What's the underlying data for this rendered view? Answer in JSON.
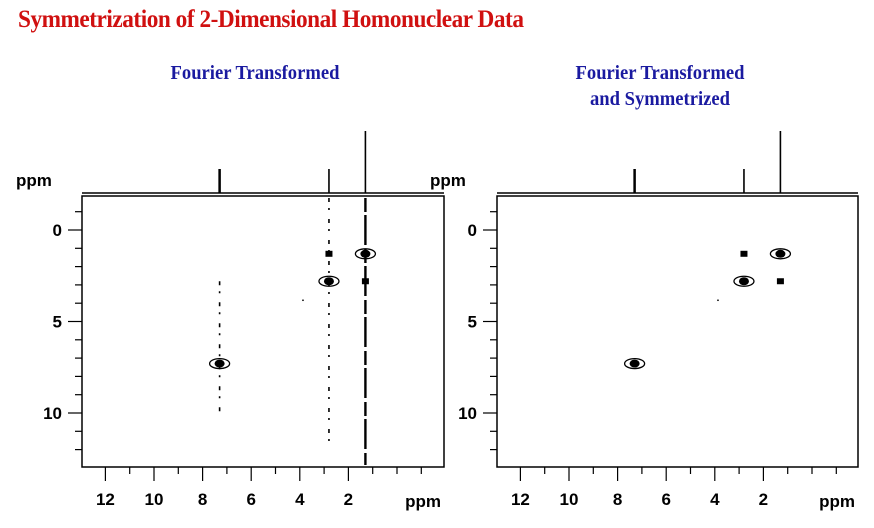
{
  "title": "Symmetrization of 2-Dimensional Homonuclear Data",
  "panels": [
    {
      "subtitle_lines": [
        "Fourier Transformed"
      ]
    },
    {
      "subtitle_lines": [
        "Fourier Transformed",
        "and Symmetrized"
      ]
    }
  ],
  "colors": {
    "title": "#d01010",
    "subtitle": "#1a1aa0",
    "ink": "#000000"
  },
  "chart_data": [
    {
      "type": "heatmap",
      "subtype": "2D NMR contour plot (COSY-like)",
      "title": "Fourier Transformed",
      "xlabel": "ppm",
      "ylabel": "ppm",
      "x_ticks": [
        12,
        10,
        8,
        6,
        4,
        2
      ],
      "y_ticks": [
        0,
        5,
        10
      ],
      "xlim": [
        13,
        -1.9
      ],
      "ylim": [
        -1.9,
        12.9
      ],
      "grid": false,
      "projection_1d_peaks_ppm": [
        7.3,
        2.8,
        1.3
      ],
      "diagonal_peaks_ppm": [
        [
          7.3,
          7.3
        ],
        [
          2.8,
          2.8
        ],
        [
          1.3,
          1.3
        ]
      ],
      "cross_peaks_ppm": [
        [
          2.8,
          1.3
        ],
        [
          1.3,
          2.8
        ]
      ],
      "t1_noise_streaks_ppm": [
        7.3,
        2.8,
        1.3
      ]
    },
    {
      "type": "heatmap",
      "subtype": "2D NMR contour plot (COSY-like)",
      "title": "Fourier Transformed and Symmetrized",
      "xlabel": "ppm",
      "ylabel": "ppm",
      "x_ticks": [
        12,
        10,
        8,
        6,
        4,
        2
      ],
      "y_ticks": [
        0,
        5,
        10
      ],
      "xlim": [
        13,
        -1.9
      ],
      "ylim": [
        -1.9,
        12.9
      ],
      "grid": false,
      "projection_1d_peaks_ppm": [
        7.3,
        2.8,
        1.3
      ],
      "diagonal_peaks_ppm": [
        [
          7.3,
          7.3
        ],
        [
          2.8,
          2.8
        ],
        [
          1.3,
          1.3
        ]
      ],
      "cross_peaks_ppm": [
        [
          2.8,
          1.3
        ],
        [
          1.3,
          2.8
        ]
      ],
      "t1_noise_streaks_ppm": []
    }
  ],
  "axis_unit_label": "ppm"
}
